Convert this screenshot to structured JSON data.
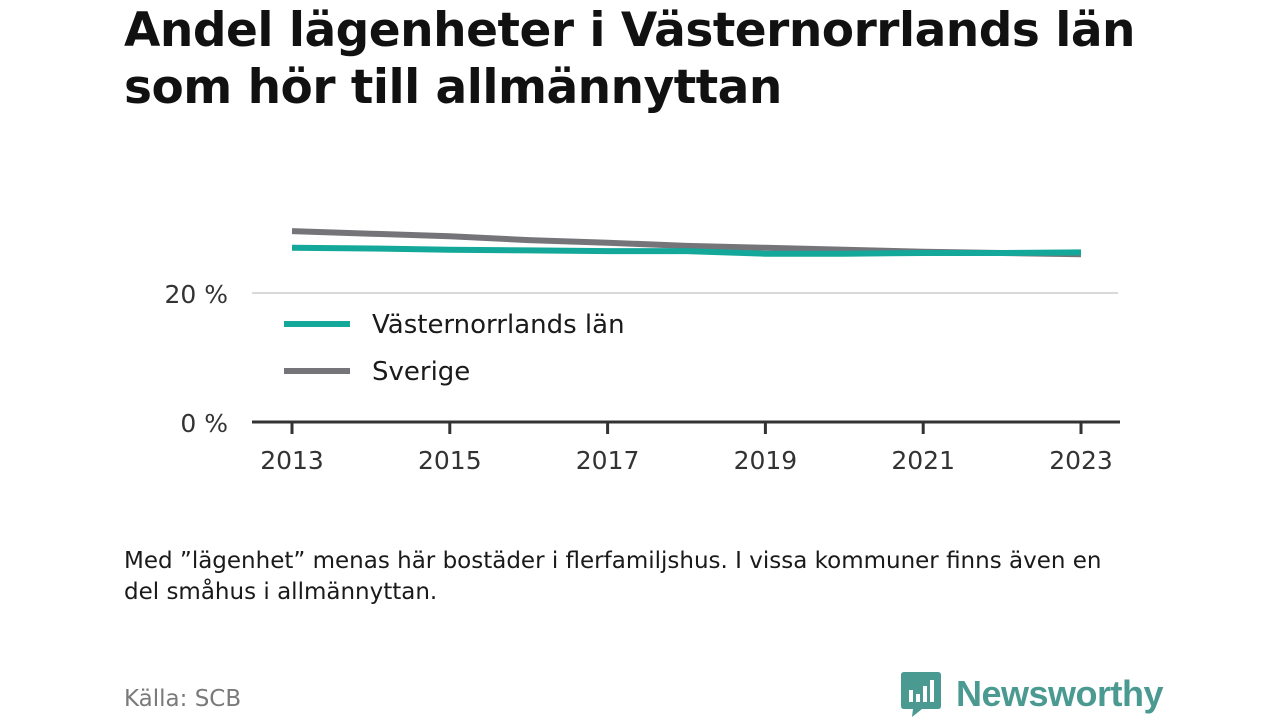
{
  "title": "Andel lägenheter i Västernorrlands län som hör till allmännyttan",
  "note": "Med ”lägenhet” menas här bostäder i flerfamiljshus. I vissa kommuner finns även en del småhus i allmännyttan.",
  "source": "Källa: SCB",
  "brand": {
    "name": "Newsworthy",
    "logo_icon": "newsworthy-logo-icon",
    "color": "#4a9a92"
  },
  "chart_data": {
    "type": "line",
    "x": [
      2013,
      2014,
      2015,
      2016,
      2017,
      2018,
      2019,
      2020,
      2021,
      2022,
      2023
    ],
    "series": [
      {
        "name": "Västernorrlands län",
        "color": "#13a89a",
        "values": [
          27.0,
          26.9,
          26.7,
          26.6,
          26.5,
          26.5,
          26.1,
          26.1,
          26.2,
          26.2,
          26.3
        ]
      },
      {
        "name": "Sverige",
        "color": "#757579",
        "values": [
          29.6,
          29.2,
          28.8,
          28.2,
          27.8,
          27.3,
          27.0,
          26.7,
          26.4,
          26.2,
          26.0
        ]
      }
    ],
    "xticks": [
      "2013",
      "2015",
      "2017",
      "2019",
      "2021",
      "2023"
    ],
    "yticks": [
      "0 %",
      "20 %"
    ],
    "ytick_values": [
      0,
      20
    ],
    "ylim": [
      0,
      30
    ],
    "xlim": [
      2013,
      2023
    ],
    "grid": true,
    "legend_position": "inside-left"
  }
}
